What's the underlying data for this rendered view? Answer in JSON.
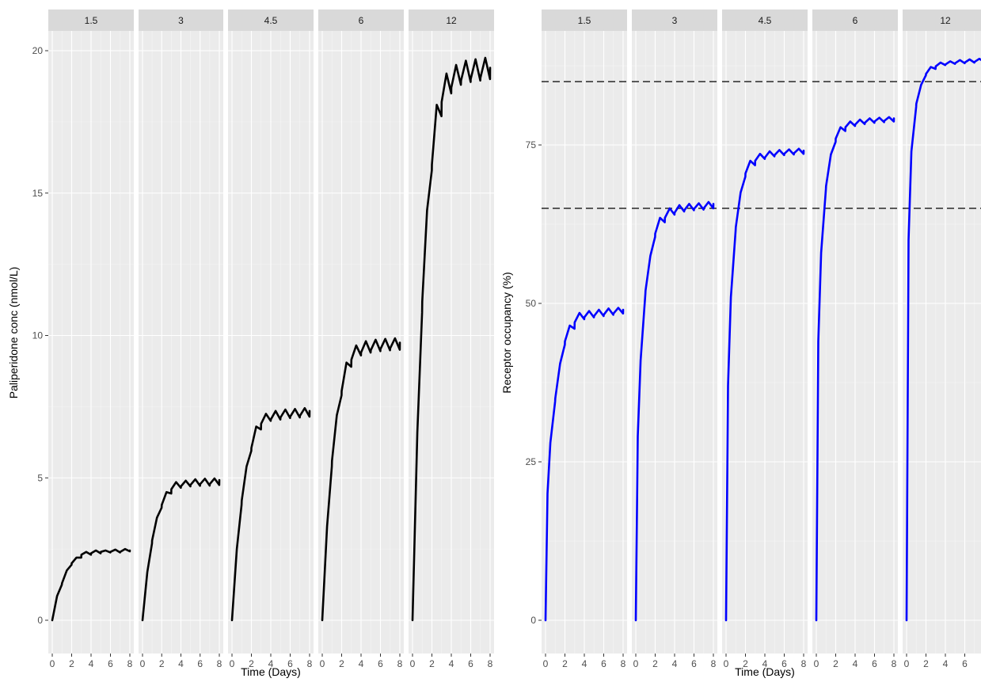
{
  "chart_data": [
    {
      "type": "line",
      "facet_variable_values": [
        "1.5",
        "3",
        "4.5",
        "6",
        "12"
      ],
      "xlabel": "Time (Days)",
      "ylabel": "Paliperidone conc (nmol/L)",
      "xlim": [
        0,
        8
      ],
      "ylim": [
        0,
        20
      ],
      "x_ticks": [
        "0",
        "2",
        "4",
        "6",
        "8"
      ],
      "y_ticks": [
        "0",
        "5",
        "10",
        "15",
        "20"
      ],
      "line_color": "#000000",
      "grid": true,
      "reference_lines": [],
      "series": [
        {
          "facet": "1.5",
          "x": [
            0,
            0.5,
            0.99,
            1.0,
            1.5,
            1.99,
            2.0,
            2.5,
            2.99,
            3.0,
            3.5,
            3.99,
            4.0,
            4.5,
            4.99,
            5.0,
            5.5,
            5.99,
            6.0,
            6.5,
            6.99,
            7.0,
            7.5,
            7.99,
            8.0
          ],
          "y": [
            0,
            0.85,
            1.25,
            1.3,
            1.75,
            1.95,
            2.0,
            2.2,
            2.2,
            2.3,
            2.4,
            2.3,
            2.35,
            2.45,
            2.35,
            2.4,
            2.45,
            2.38,
            2.4,
            2.48,
            2.38,
            2.4,
            2.5,
            2.42,
            2.45
          ]
        },
        {
          "facet": "3",
          "x": [
            0,
            0.5,
            0.99,
            1.0,
            1.5,
            1.99,
            2.0,
            2.5,
            2.99,
            3.0,
            3.5,
            3.99,
            4.0,
            4.5,
            4.99,
            5.0,
            5.5,
            5.99,
            6.0,
            6.5,
            6.99,
            7.0,
            7.5,
            7.99,
            8.0
          ],
          "y": [
            0,
            1.7,
            2.7,
            2.8,
            3.6,
            3.95,
            4.05,
            4.5,
            4.45,
            4.6,
            4.85,
            4.65,
            4.7,
            4.9,
            4.7,
            4.75,
            4.95,
            4.72,
            4.78,
            4.97,
            4.73,
            4.78,
            4.98,
            4.75,
            4.92
          ]
        },
        {
          "facet": "4.5",
          "x": [
            0,
            0.5,
            0.99,
            1.0,
            1.5,
            1.99,
            2.0,
            2.5,
            2.99,
            3.0,
            3.5,
            3.99,
            4.0,
            4.5,
            4.99,
            5.0,
            5.5,
            5.99,
            6.0,
            6.5,
            6.99,
            7.0,
            7.5,
            7.99,
            8.0
          ],
          "y": [
            0,
            2.5,
            4.05,
            4.2,
            5.4,
            5.95,
            6.05,
            6.8,
            6.7,
            6.9,
            7.25,
            7.0,
            7.05,
            7.35,
            7.05,
            7.12,
            7.4,
            7.1,
            7.15,
            7.42,
            7.12,
            7.18,
            7.45,
            7.15,
            7.35
          ]
        },
        {
          "facet": "6",
          "x": [
            0,
            0.5,
            0.99,
            1.0,
            1.5,
            1.99,
            2.0,
            2.5,
            2.99,
            3.0,
            3.5,
            3.99,
            4.0,
            4.5,
            4.99,
            5.0,
            5.5,
            5.99,
            6.0,
            6.5,
            6.99,
            7.0,
            7.5,
            7.99,
            8.0
          ],
          "y": [
            0,
            3.3,
            5.4,
            5.6,
            7.2,
            7.9,
            8.05,
            9.05,
            8.9,
            9.15,
            9.65,
            9.3,
            9.4,
            9.8,
            9.4,
            9.48,
            9.85,
            9.45,
            9.52,
            9.88,
            9.48,
            9.55,
            9.9,
            9.5,
            9.75
          ]
        },
        {
          "facet": "12",
          "x": [
            0,
            0.5,
            0.99,
            1.0,
            1.5,
            1.99,
            2.0,
            2.5,
            2.99,
            3.0,
            3.5,
            3.99,
            4.0,
            4.5,
            4.99,
            5.0,
            5.5,
            5.99,
            6.0,
            6.5,
            6.99,
            7.0,
            7.5,
            7.99,
            8.0
          ],
          "y": [
            0,
            6.6,
            10.8,
            11.2,
            14.4,
            15.8,
            16.0,
            18.1,
            17.7,
            18.2,
            19.2,
            18.5,
            18.7,
            19.5,
            18.8,
            18.95,
            19.65,
            18.9,
            19.0,
            19.7,
            18.95,
            19.05,
            19.75,
            19.0,
            19.4
          ]
        }
      ]
    },
    {
      "type": "line",
      "facet_variable_values": [
        "1.5",
        "3",
        "4.5",
        "6",
        "12"
      ],
      "xlabel": "Time (Days)",
      "ylabel": "Receptor occupancy (%)",
      "xlim": [
        0,
        8
      ],
      "ylim": [
        0,
        90
      ],
      "x_ticks": [
        "0",
        "2",
        "4",
        "6",
        "8"
      ],
      "y_ticks": [
        "0",
        "25",
        "50",
        "75"
      ],
      "line_color": "#0000ff",
      "grid": true,
      "reference_lines": [
        {
          "axis": "y",
          "value": 65,
          "style": "dashed",
          "color": "#000000"
        },
        {
          "axis": "y",
          "value": 85,
          "style": "dashed",
          "color": "#000000"
        }
      ],
      "series": [
        {
          "facet": "1.5",
          "x": [
            0,
            0.2,
            0.5,
            0.99,
            1.0,
            1.5,
            1.99,
            2.0,
            2.5,
            2.99,
            3.0,
            3.5,
            3.99,
            4.0,
            4.5,
            4.99,
            5.0,
            5.5,
            5.99,
            6.0,
            6.5,
            6.99,
            7.0,
            7.5,
            7.99,
            8.0
          ],
          "y": [
            0,
            20,
            28,
            34.5,
            35,
            40.5,
            43.5,
            44,
            46.5,
            46,
            47,
            48.5,
            47.5,
            47.8,
            48.8,
            47.8,
            48,
            49,
            48,
            48.2,
            49.2,
            48.2,
            48.4,
            49.3,
            48.4,
            49
          ]
        },
        {
          "facet": "3",
          "x": [
            0,
            0.2,
            0.5,
            0.99,
            1.0,
            1.5,
            1.99,
            2.0,
            2.5,
            2.99,
            3.0,
            3.5,
            3.99,
            4.0,
            4.5,
            4.99,
            5.0,
            5.5,
            5.99,
            6.0,
            6.5,
            6.99,
            7.0,
            7.5,
            7.99,
            8.0
          ],
          "y": [
            0,
            29,
            41,
            51.5,
            52,
            57.5,
            60.5,
            61,
            63.5,
            62.8,
            63.5,
            65,
            64,
            64.3,
            65.5,
            64.5,
            64.7,
            65.7,
            64.7,
            64.9,
            65.8,
            64.8,
            65,
            66,
            65,
            65.7
          ]
        },
        {
          "facet": "4.5",
          "x": [
            0,
            0.2,
            0.5,
            0.99,
            1.0,
            1.5,
            1.99,
            2.0,
            2.5,
            2.99,
            3.0,
            3.5,
            3.99,
            4.0,
            4.5,
            4.99,
            5.0,
            5.5,
            5.99,
            6.0,
            6.5,
            6.99,
            7.0,
            7.5,
            7.99,
            8.0
          ],
          "y": [
            0,
            37,
            51,
            61.5,
            62,
            67.5,
            70,
            70.5,
            72.5,
            71.8,
            72.5,
            73.6,
            72.8,
            73,
            74,
            73.2,
            73.4,
            74.2,
            73.4,
            73.6,
            74.3,
            73.5,
            73.7,
            74.4,
            73.6,
            74.1
          ]
        },
        {
          "facet": "6",
          "x": [
            0,
            0.2,
            0.5,
            0.99,
            1.0,
            1.5,
            1.99,
            2.0,
            2.5,
            2.99,
            3.0,
            3.5,
            3.99,
            4.0,
            4.5,
            4.99,
            5.0,
            5.5,
            5.99,
            6.0,
            6.5,
            6.99,
            7.0,
            7.5,
            7.99,
            8.0
          ],
          "y": [
            0,
            44,
            58,
            68,
            68.5,
            73.5,
            75.5,
            76,
            77.8,
            77.2,
            77.8,
            78.7,
            78,
            78.2,
            79,
            78.3,
            78.5,
            79.2,
            78.5,
            78.7,
            79.3,
            78.6,
            78.8,
            79.4,
            78.7,
            79.2
          ]
        },
        {
          "facet": "12",
          "x": [
            0,
            0.2,
            0.5,
            0.99,
            1.0,
            1.5,
            1.99,
            2.0,
            2.5,
            2.99,
            3.0,
            3.5,
            3.99,
            4.0,
            4.5,
            4.99,
            5.0,
            5.5,
            5.99,
            6.0,
            6.5,
            6.99,
            7.0,
            7.5,
            7.99,
            8.0
          ],
          "y": [
            0,
            60,
            74,
            81,
            81.5,
            84.5,
            86,
            86.2,
            87.3,
            87,
            87.4,
            88,
            87.6,
            87.7,
            88.2,
            87.8,
            87.9,
            88.4,
            87.9,
            88,
            88.5,
            88,
            88.1,
            88.6,
            88.1,
            88.5
          ]
        }
      ]
    }
  ]
}
